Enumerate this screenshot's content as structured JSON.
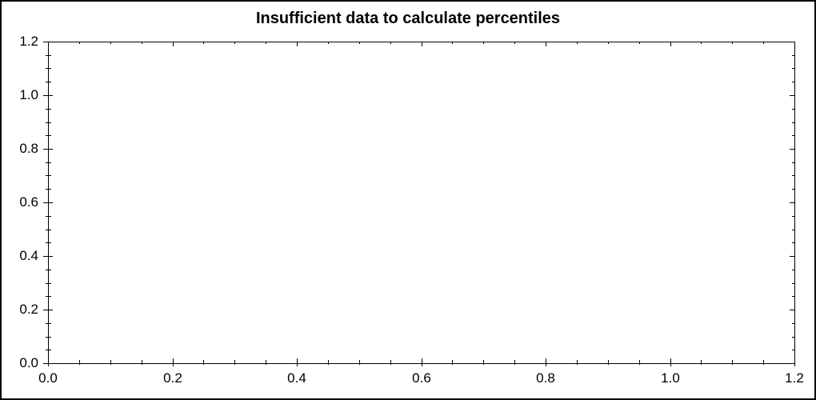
{
  "window": {
    "background_color": "#ffffff",
    "border_color": "#000000"
  },
  "chart_data": {
    "type": "line",
    "title": "Insufficient data to calculate percentiles",
    "subtitle": "",
    "xlabel": "",
    "ylabel": "",
    "xlim": [
      0.0,
      1.2
    ],
    "ylim": [
      0.0,
      1.2
    ],
    "x_major_ticks": [
      0.0,
      0.2,
      0.4,
      0.6,
      0.8,
      1.0,
      1.2
    ],
    "y_major_ticks": [
      0.0,
      0.2,
      0.4,
      0.6,
      0.8,
      1.0,
      1.2
    ],
    "x_tick_labels": [
      "0.0",
      "0.2",
      "0.4",
      "0.6",
      "0.8",
      "1.0",
      "1.2"
    ],
    "y_tick_labels": [
      "0.0",
      "0.2",
      "0.4",
      "0.6",
      "0.8",
      "1.0",
      "1.2"
    ],
    "minor_tick_step": 0.05,
    "grid": false,
    "legend": "none",
    "series": [],
    "title_color": "#000000",
    "axis_color": "#000000",
    "tick_label_color": "#000000"
  }
}
